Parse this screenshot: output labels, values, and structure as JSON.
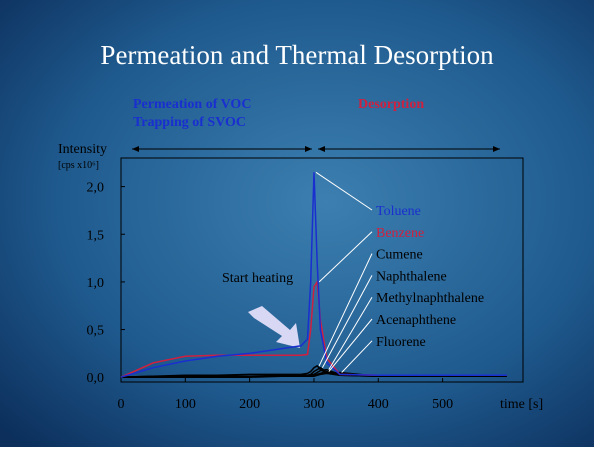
{
  "chart_data": {
    "type": "line",
    "title": "Permeation and Thermal Desorption",
    "annotations": [
      "Permeation of VOC",
      "Trapping of SVOC",
      "Desorption",
      "Start heating"
    ],
    "y_label": "Intensity",
    "y_unit": "[cps x10⁶]",
    "x_label": "time [s]",
    "x": [
      0,
      50,
      100,
      150,
      200,
      250,
      280,
      290,
      295,
      300,
      305,
      310,
      320,
      340,
      400,
      500,
      600
    ],
    "series": [
      {
        "name": "Toluene",
        "color": "#1a2fd0",
        "values": [
          0,
          0.1,
          0.17,
          0.22,
          0.25,
          0.3,
          0.33,
          0.4,
          1.0,
          2.15,
          1.2,
          0.5,
          0.15,
          0.03,
          0.02,
          0.02,
          0.02
        ]
      },
      {
        "name": "Benzene",
        "color": "#d02040",
        "values": [
          0,
          0.15,
          0.22,
          0.23,
          0.23,
          0.23,
          0.23,
          0.24,
          0.5,
          0.95,
          1.0,
          0.6,
          0.2,
          0.03,
          0.02,
          0.02,
          0.02
        ]
      },
      {
        "name": "Cumene",
        "color": "#000000",
        "values": [
          0,
          0.01,
          0.02,
          0.02,
          0.03,
          0.03,
          0.03,
          0.04,
          0.06,
          0.1,
          0.12,
          0.08,
          0.04,
          0.02,
          0.01,
          0.01,
          0.01
        ]
      },
      {
        "name": "Naphthalene",
        "color": "#000000",
        "values": [
          0,
          0.01,
          0.01,
          0.01,
          0.01,
          0.02,
          0.02,
          0.02,
          0.03,
          0.06,
          0.08,
          0.1,
          0.05,
          0.02,
          0.01,
          0.01,
          0.01
        ]
      },
      {
        "name": "Methylnaphthalene",
        "color": "#000000",
        "values": [
          0,
          0,
          0.01,
          0.01,
          0.01,
          0.01,
          0.01,
          0.01,
          0.02,
          0.03,
          0.05,
          0.07,
          0.08,
          0.03,
          0.01,
          0.01,
          0.01
        ]
      },
      {
        "name": "Acenaphthene",
        "color": "#000000",
        "values": [
          0,
          0,
          0,
          0.01,
          0.01,
          0.01,
          0.01,
          0.01,
          0.01,
          0.02,
          0.03,
          0.04,
          0.06,
          0.04,
          0.01,
          0.01,
          0.01
        ]
      },
      {
        "name": "Fluorene",
        "color": "#000000",
        "values": [
          0,
          0,
          0,
          0,
          0,
          0.01,
          0.01,
          0.01,
          0.01,
          0.01,
          0.02,
          0.03,
          0.04,
          0.05,
          0.01,
          0.01,
          0.01
        ]
      }
    ],
    "xlim": [
      0,
      625
    ],
    "xticks": [
      0,
      100,
      200,
      300,
      400,
      500
    ],
    "ylim": [
      -0.05,
      2.3
    ],
    "yticks": [
      {
        "value": 0,
        "label": "0,0"
      },
      {
        "value": 0.5,
        "label": "0,5"
      },
      {
        "value": 1,
        "label": "1,0"
      },
      {
        "value": 1.5,
        "label": "1,5"
      },
      {
        "value": 2,
        "label": "2,0"
      }
    ],
    "grid": false
  }
}
